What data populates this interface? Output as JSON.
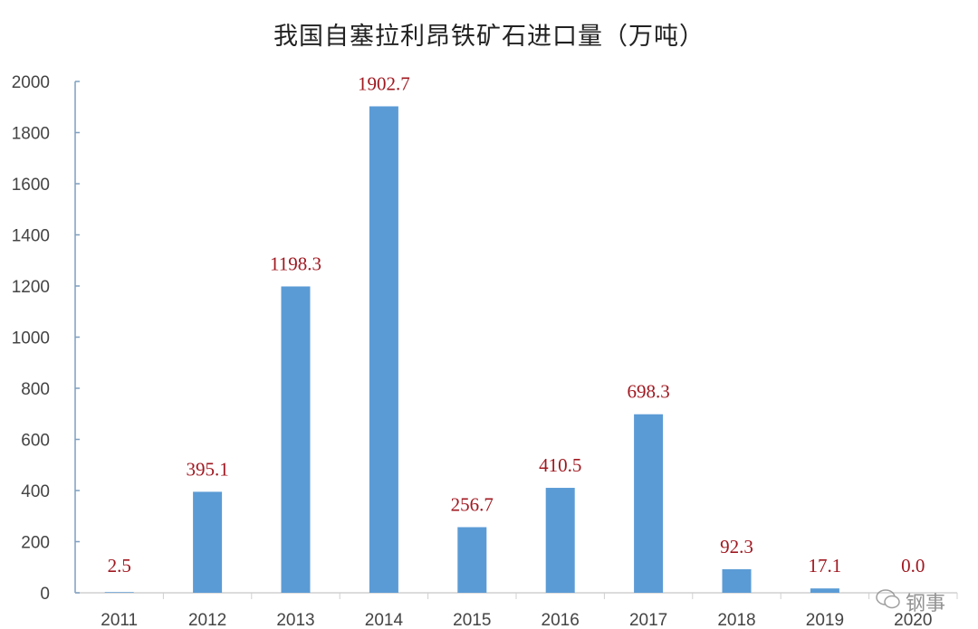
{
  "chart_data": {
    "type": "bar",
    "title": "我国自塞拉利昂铁矿石进口量（万吨）",
    "categories": [
      "2011",
      "2012",
      "2013",
      "2014",
      "2015",
      "2016",
      "2017",
      "2018",
      "2019",
      "2020"
    ],
    "values": [
      2.5,
      395.1,
      1198.3,
      1902.7,
      256.7,
      410.5,
      698.3,
      92.3,
      17.1,
      0.0
    ],
    "data_labels": [
      "2.5",
      "395.1",
      "1198.3",
      "1902.7",
      "256.7",
      "410.5",
      "698.3",
      "92.3",
      "17.1",
      "0.0"
    ],
    "xlabel": "",
    "ylabel": "",
    "ylim": [
      0,
      2000
    ],
    "yticks": [
      0,
      200,
      400,
      600,
      800,
      1000,
      1200,
      1400,
      1600,
      1800,
      2000
    ],
    "grid": false,
    "legend": "none",
    "colors": {
      "bar": "#5b9bd5",
      "data_label": "#a01820",
      "axis": "#7f9fbf"
    }
  },
  "watermark": {
    "text": "钢事",
    "icon": "wechat-icon"
  }
}
